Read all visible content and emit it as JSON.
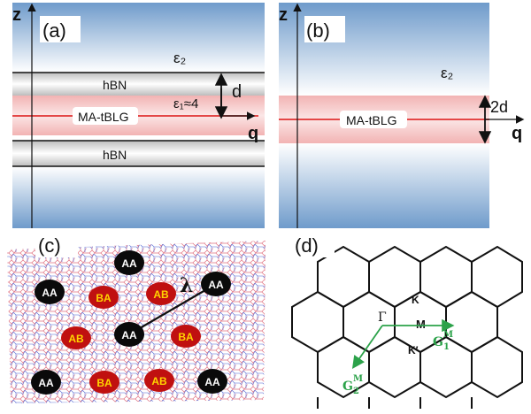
{
  "panels": {
    "a": {
      "label": "(a)",
      "z_axis": "z",
      "q_axis": "q",
      "eps_top": "ε₂",
      "eps_mid": "ε₁≈4",
      "hbn_top": "hBN",
      "hbn_bottom": "hBN",
      "layer": "MA-tBLG",
      "thickness": "d"
    },
    "b": {
      "label": "(b)",
      "z_axis": "z",
      "q_axis": "q",
      "eps": "ε₂",
      "layer": "MA-tBLG",
      "thickness": "2d"
    },
    "c": {
      "label": "(c)",
      "lambda": "λ",
      "aa_label": "AA",
      "ab_label": "AB",
      "ba_label": "BA"
    },
    "d": {
      "label": "(d)",
      "gamma": "Γ",
      "m": "M",
      "k": "K",
      "k_prime": "K′",
      "g1_main": "G",
      "g1_sup": "M",
      "g1_sub": "1",
      "g2_main": "G",
      "g2_sup": "M",
      "g2_sub": "2"
    }
  },
  "colors": {
    "substrate_blue": "#5b8dc2",
    "layer_red": "#e04040",
    "hbn_gray": "#9a9a9a",
    "aa_fill": "#0a0a0a",
    "ab_fill": "#c01010",
    "ab_text": "#ffd400",
    "reciprocal_green": "#2ca24a",
    "lattice_red": "#e07080",
    "lattice_blue": "#4a5fd0"
  }
}
